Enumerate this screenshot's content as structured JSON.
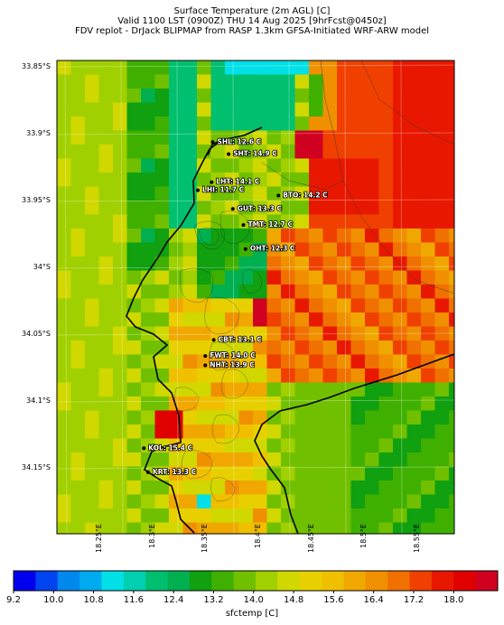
{
  "title": {
    "line1": "Surface Temperature (2m AGL) [C]",
    "line2": "Valid 1100 LST (0900Z) THU 14 Aug 2025 [9hrFcst@0450z]",
    "line3": "FDV replot - DrJack BLIPMAP from RASP 1.3km GFSA-Initiated WRF-ARW model"
  },
  "map": {
    "lon_range": [
      18.21,
      18.585
    ],
    "lat_range": [
      -34.199,
      -33.845
    ],
    "lat_labels": [
      "33.85°S",
      "33.9°S",
      "33.95°S",
      "34°S",
      "34.05°S",
      "34.1°S",
      "34.15°S"
    ],
    "lat_values": [
      -33.85,
      -33.9,
      -33.95,
      -34.0,
      -34.05,
      -34.1,
      -34.15
    ],
    "lon_labels": [
      "18.25°E",
      "18.3°E",
      "18.35°E",
      "18.4°E",
      "18.45°E",
      "18.5°E",
      "18.55°E"
    ],
    "lon_values": [
      18.25,
      18.3,
      18.35,
      18.4,
      18.45,
      18.5,
      18.55
    ]
  },
  "stations": [
    {
      "label": "SHL: 12.6 C",
      "lon": 18.357,
      "lat": -33.906
    },
    {
      "label": "SHT: 14.9 C",
      "lon": 18.372,
      "lat": -33.915
    },
    {
      "label": "LHT: 14.1 C",
      "lon": 18.356,
      "lat": -33.936
    },
    {
      "label": "LHI: 11.7 C",
      "lon": 18.343,
      "lat": -33.942
    },
    {
      "label": "BTO: 14.2 C",
      "lon": 18.419,
      "lat": -33.946
    },
    {
      "label": "GUT: 13.3 C",
      "lon": 18.376,
      "lat": -33.956
    },
    {
      "label": "TMT: 12.7 C",
      "lon": 18.386,
      "lat": -33.968
    },
    {
      "label": "OHT: 12.3 C",
      "lon": 18.388,
      "lat": -33.986
    },
    {
      "label": "CBT: 13.1 C",
      "lon": 18.358,
      "lat": -34.054
    },
    {
      "label": "FWT: 14.0 C",
      "lon": 18.35,
      "lat": -34.066
    },
    {
      "label": "NHT: 13.9 C",
      "lon": 18.35,
      "lat": -34.073
    },
    {
      "label": "KOL: 15.4 C",
      "lon": 18.292,
      "lat": -34.135
    },
    {
      "label": "KRT: 13.3 C",
      "lon": 18.296,
      "lat": -34.153
    }
  ],
  "colorbar": {
    "label": "sfctemp [C]",
    "ticks": [
      "9.2",
      "10.0",
      "10.8",
      "11.6",
      "12.4",
      "13.2",
      "14.0",
      "14.8",
      "15.6",
      "16.4",
      "17.2",
      "18.0"
    ],
    "colors": [
      "#0000ee",
      "#0044f0",
      "#0088ee",
      "#00aaee",
      "#00e0e6",
      "#00d0b0",
      "#00c070",
      "#00b050",
      "#10a010",
      "#40b000",
      "#70c000",
      "#a0d000",
      "#d0d800",
      "#e8d000",
      "#f0c000",
      "#f0a800",
      "#f09000",
      "#f07000",
      "#f04000",
      "#e81800",
      "#e00000",
      "#d00020"
    ]
  }
}
